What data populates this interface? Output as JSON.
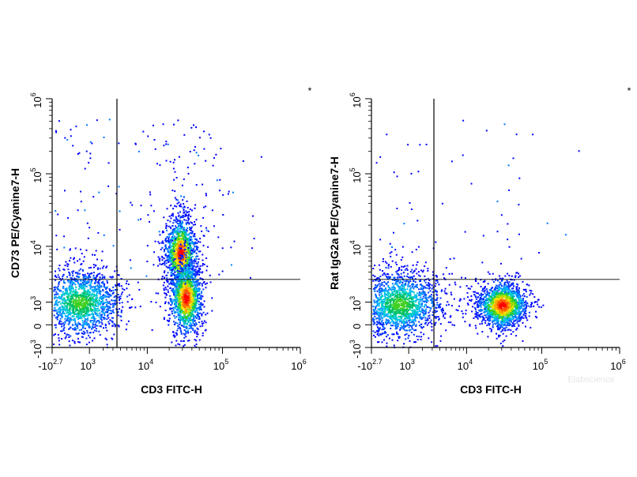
{
  "chart_data": [
    {
      "type": "scatter",
      "plot_style": "density dot plot with gate quadrants",
      "xlabel": "CD3 FITC-H",
      "ylabel": "CD73 PE/Cyanine7-H",
      "corner_marker": "*",
      "x_scale": "biexponential",
      "y_scale": "biexponential",
      "xlim": [
        -500,
        1000000
      ],
      "ylim": [
        -1000,
        1000000
      ],
      "x_ticks": [
        {
          "base": "-10",
          "exp": "2.7"
        },
        {
          "base": "10",
          "exp": "3"
        },
        {
          "base": "10",
          "exp": "4"
        },
        {
          "base": "10",
          "exp": "5"
        },
        {
          "base": "10",
          "exp": "6"
        }
      ],
      "y_ticks": [
        {
          "base": "-10",
          "exp": "3"
        },
        {
          "base": "0",
          "exp": ""
        },
        {
          "base": "10",
          "exp": "3"
        },
        {
          "base": "10",
          "exp": "4"
        },
        {
          "base": "10",
          "exp": "5"
        },
        {
          "base": "10",
          "exp": "6"
        }
      ],
      "gate": {
        "x": 3500,
        "y": 3000
      },
      "clusters": [
        {
          "x_center": 500,
          "y_center": 1000,
          "spread": "broad",
          "n": 1600,
          "peak": "green"
        },
        {
          "x_center": 28000,
          "y_center": 8000,
          "spread": "tall",
          "n": 1300,
          "peak": "red"
        },
        {
          "x_center": 33000,
          "y_center": 1300,
          "spread": "tall",
          "n": 1300,
          "peak": "red"
        }
      ],
      "sparse_events": 220
    },
    {
      "type": "scatter",
      "plot_style": "density dot plot with gate quadrants",
      "xlabel": "CD3 FITC-H",
      "ylabel": "Rat IgG2a PE/Cyanine7-H",
      "corner_marker": "*",
      "x_scale": "biexponential",
      "y_scale": "biexponential",
      "xlim": [
        -500,
        1000000
      ],
      "ylim": [
        -1000,
        1000000
      ],
      "x_ticks": [
        {
          "base": "-10",
          "exp": "2.7"
        },
        {
          "base": "10",
          "exp": "3"
        },
        {
          "base": "10",
          "exp": "4"
        },
        {
          "base": "10",
          "exp": "5"
        },
        {
          "base": "10",
          "exp": "6"
        }
      ],
      "y_ticks": [
        {
          "base": "-10",
          "exp": "3"
        },
        {
          "base": "0",
          "exp": ""
        },
        {
          "base": "10",
          "exp": "3"
        },
        {
          "base": "10",
          "exp": "4"
        },
        {
          "base": "10",
          "exp": "5"
        },
        {
          "base": "10",
          "exp": "6"
        }
      ],
      "gate": {
        "x": 3200,
        "y": 3000
      },
      "clusters": [
        {
          "x_center": 500,
          "y_center": 900,
          "spread": "broad",
          "n": 1700,
          "peak": "green"
        },
        {
          "x_center": 30000,
          "y_center": 850,
          "spread": "compact",
          "n": 1700,
          "peak": "red"
        }
      ],
      "sparse_events": 60
    }
  ],
  "colors": {
    "density_low": "#0000ff",
    "density_mid": "#00c060",
    "density_high": "#ffd000",
    "density_peak": "#ff0000",
    "gate_line": "#000000"
  },
  "watermark": "Elabscience"
}
